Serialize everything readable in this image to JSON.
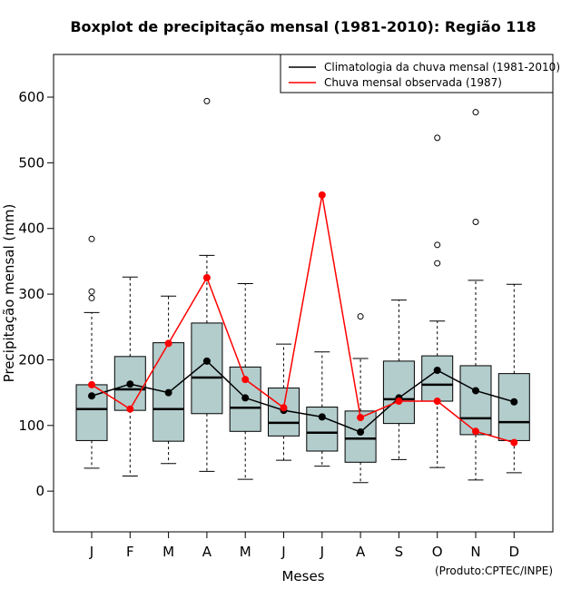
{
  "chart_data": {
    "type": "boxplot",
    "title": "Boxplot de precipitação mensal (1981-2010): Região 118",
    "xlabel": "Meses",
    "ylabel": "Precipitação mensal (mm)",
    "credit": "(Produto:CPTEC/INPE)",
    "categories": [
      "J",
      "F",
      "M",
      "A",
      "M",
      "J",
      "J",
      "A",
      "S",
      "O",
      "N",
      "D"
    ],
    "ylim": [
      -62,
      665
    ],
    "yticks": [
      0,
      100,
      200,
      300,
      400,
      500,
      600
    ],
    "box_color": "#b3cccc",
    "climatology_color": "#000000",
    "observed_color": "#ff0000",
    "boxes": [
      {
        "whisker_low": 35,
        "q1": 77,
        "median": 125,
        "q3": 162,
        "whisker_high": 272,
        "outliers": [
          384,
          304,
          294
        ]
      },
      {
        "whisker_low": 23,
        "q1": 123,
        "median": 155,
        "q3": 205,
        "whisker_high": 326,
        "outliers": []
      },
      {
        "whisker_low": 42,
        "q1": 76,
        "median": 125,
        "q3": 226,
        "whisker_high": 297,
        "outliers": []
      },
      {
        "whisker_low": 30,
        "q1": 118,
        "median": 173,
        "q3": 256,
        "whisker_high": 359,
        "outliers": [
          594
        ]
      },
      {
        "whisker_low": 18,
        "q1": 91,
        "median": 127,
        "q3": 189,
        "whisker_high": 316,
        "outliers": []
      },
      {
        "whisker_low": 47,
        "q1": 84,
        "median": 104,
        "q3": 157,
        "whisker_high": 224,
        "outliers": []
      },
      {
        "whisker_low": 38,
        "q1": 61,
        "median": 89,
        "q3": 128,
        "whisker_high": 212,
        "outliers": []
      },
      {
        "whisker_low": 13,
        "q1": 44,
        "median": 80,
        "q3": 122,
        "whisker_high": 202,
        "outliers": [
          266
        ]
      },
      {
        "whisker_low": 48,
        "q1": 103,
        "median": 140,
        "q3": 198,
        "whisker_high": 291,
        "outliers": []
      },
      {
        "whisker_low": 36,
        "q1": 137,
        "median": 162,
        "q3": 206,
        "whisker_high": 259,
        "outliers": [
          538,
          375,
          347
        ]
      },
      {
        "whisker_low": 17,
        "q1": 86,
        "median": 111,
        "q3": 191,
        "whisker_high": 321,
        "outliers": [
          577,
          410
        ]
      },
      {
        "whisker_low": 28,
        "q1": 77,
        "median": 105,
        "q3": 179,
        "whisker_high": 315,
        "outliers": []
      }
    ],
    "series": [
      {
        "name": "Climatologia da chuva mensal (1981-2010)",
        "values": [
          145,
          163,
          150,
          198,
          142,
          123,
          113,
          90,
          142,
          184,
          153,
          136
        ]
      },
      {
        "name": "Chuva mensal observada (1987)",
        "values": [
          162,
          125,
          225,
          325,
          170,
          127,
          451,
          112,
          137,
          137,
          91,
          74
        ]
      }
    ]
  }
}
